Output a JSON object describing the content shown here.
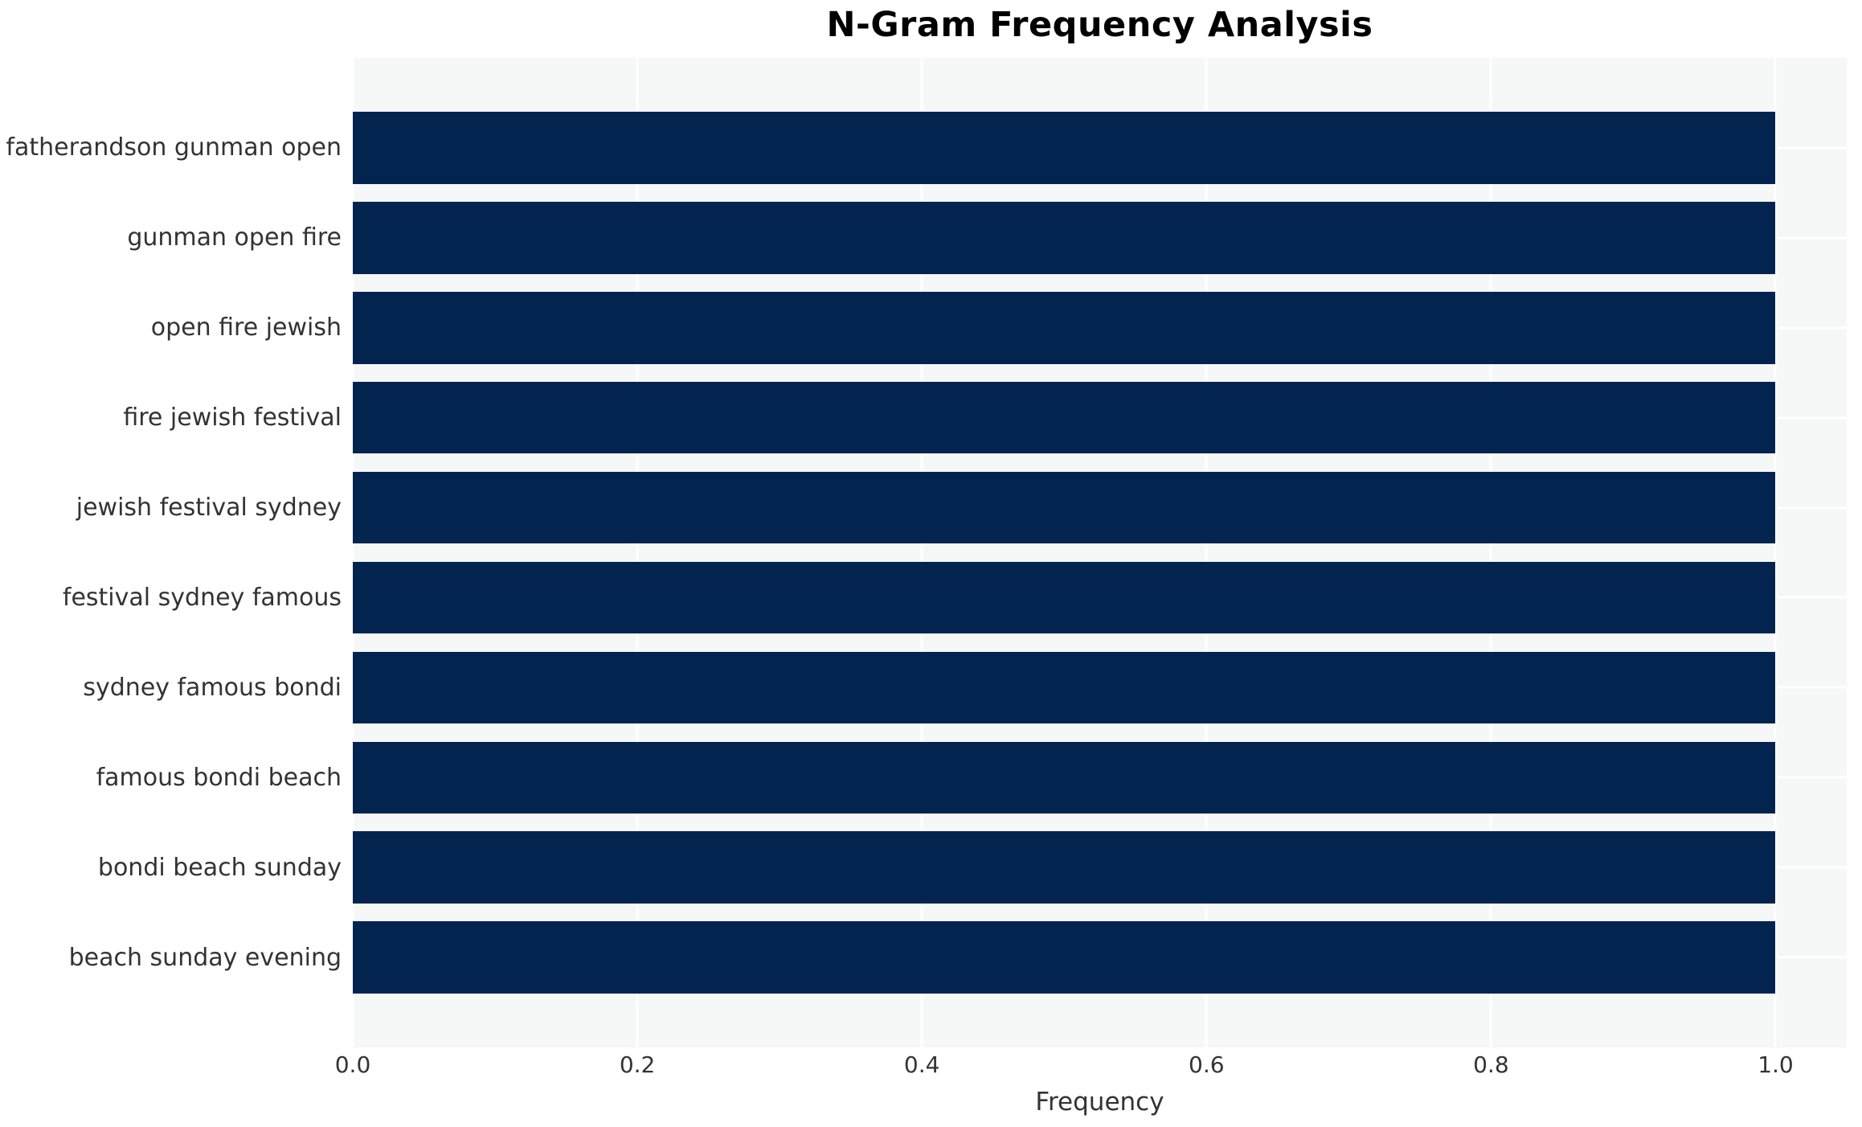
{
  "chart_data": {
    "type": "bar",
    "orientation": "horizontal",
    "title": "N-Gram Frequency Analysis",
    "xlabel": "Frequency",
    "ylabel": "",
    "categories": [
      "fatherandson gunman open",
      "gunman open fire",
      "open fire jewish",
      "fire jewish festival",
      "jewish festival sydney",
      "festival sydney famous",
      "sydney famous bondi",
      "famous bondi beach",
      "bondi beach sunday",
      "beach sunday evening"
    ],
    "values": [
      1.0,
      1.0,
      1.0,
      1.0,
      1.0,
      1.0,
      1.0,
      1.0,
      1.0,
      1.0
    ],
    "xlim": [
      0,
      1.05
    ],
    "xticks": [
      0.0,
      0.2,
      0.4,
      0.6,
      0.8,
      1.0
    ],
    "xtick_labels": [
      "0.0",
      "0.2",
      "0.4",
      "0.6",
      "0.8",
      "1.0"
    ],
    "grid": true,
    "legend": false,
    "bar_height_fraction": 0.8,
    "colors": {
      "bar": "#03244e",
      "plot_bg": "#f6f7f7",
      "grid": "#ffffff",
      "tick_text": "#333333",
      "title_text": "#000000",
      "figure_bg": "#ffffff"
    }
  }
}
